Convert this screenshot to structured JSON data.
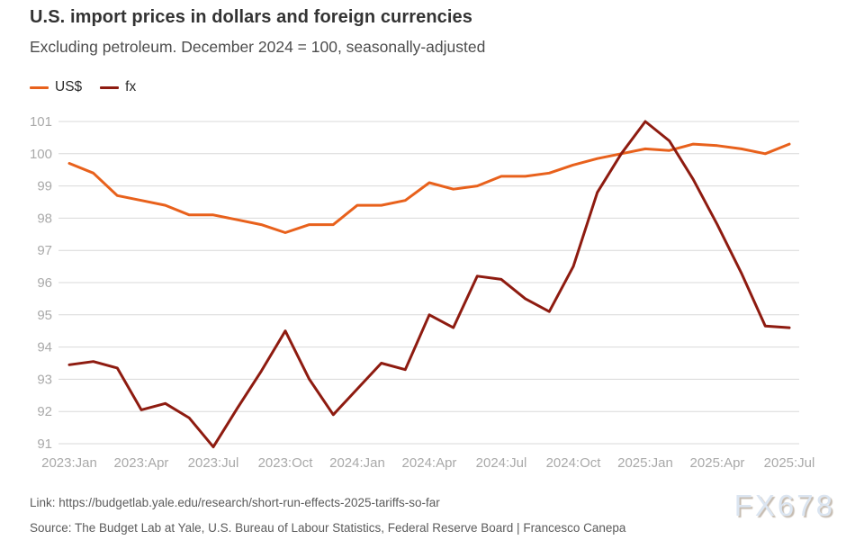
{
  "header": {
    "title": "U.S. import prices in dollars and foreign currencies",
    "subtitle": "Excluding petroleum. December 2024 = 100, seasonally-adjusted"
  },
  "legend": [
    {
      "label": "US$",
      "color": "#e8611c"
    },
    {
      "label": "fx",
      "color": "#8e1b10"
    }
  ],
  "chart_data": {
    "type": "line",
    "title": "U.S. import prices in dollars and foreign currencies",
    "subtitle": "Excluding petroleum. December 2024 = 100, seasonally-adjusted",
    "x": [
      "2023:Jan",
      "2023:Feb",
      "2023:Mar",
      "2023:Apr",
      "2023:May",
      "2023:Jun",
      "2023:Jul",
      "2023:Aug",
      "2023:Sep",
      "2023:Oct",
      "2023:Nov",
      "2023:Dec",
      "2024:Jan",
      "2024:Feb",
      "2024:Mar",
      "2024:Apr",
      "2024:May",
      "2024:Jun",
      "2024:Jul",
      "2024:Aug",
      "2024:Sep",
      "2024:Oct",
      "2024:Nov",
      "2024:Dec",
      "2025:Jan",
      "2025:Feb",
      "2025:Mar",
      "2025:Apr",
      "2025:May",
      "2025:Jun",
      "2025:Jul"
    ],
    "x_tick_labels": [
      "2023:Jan",
      "2023:Apr",
      "2023:Jul",
      "2023:Oct",
      "2024:Jan",
      "2024:Apr",
      "2024:Jul",
      "2024:Oct",
      "2025:Jan",
      "2025:Apr",
      "2025:Jul"
    ],
    "y_ticks": [
      91,
      92,
      93,
      94,
      95,
      96,
      97,
      98,
      99,
      100,
      101
    ],
    "ylim": [
      91,
      101
    ],
    "grid": "horizontal",
    "legend_position": "top-left",
    "series": [
      {
        "name": "US$",
        "color": "#e8611c",
        "values": [
          99.7,
          99.4,
          98.7,
          98.55,
          98.4,
          98.1,
          98.1,
          97.95,
          97.8,
          97.55,
          97.8,
          97.8,
          98.4,
          98.4,
          98.55,
          99.1,
          98.9,
          99.0,
          99.3,
          99.3,
          99.4,
          99.65,
          99.85,
          100.0,
          100.15,
          100.1,
          100.3,
          100.25,
          100.15,
          100.0,
          100.3
        ]
      },
      {
        "name": "fx",
        "color": "#8e1b10",
        "values": [
          93.45,
          93.55,
          93.35,
          92.05,
          92.25,
          91.8,
          90.9,
          92.1,
          93.25,
          94.5,
          93.0,
          91.9,
          92.7,
          93.5,
          93.3,
          95.0,
          94.6,
          96.2,
          96.1,
          95.5,
          95.1,
          96.5,
          98.8,
          100.0,
          101.0,
          100.4,
          99.2,
          97.8,
          96.3,
          94.65,
          94.6
        ]
      }
    ]
  },
  "footer": {
    "link": "Link: https://budgetlab.yale.edu/research/short-run-effects-2025-tariffs-so-far",
    "source": "Source: The Budget Lab at Yale, U.S. Bureau of Labour Statistics, Federal Reserve Board  | Francesco Canepa",
    "watermark": "FX678"
  },
  "colors": {
    "us_dollar_line": "#e8611c",
    "fx_line": "#8e1b10",
    "gridline": "#d9d9d9",
    "axis_label": "#a9a9a9"
  }
}
